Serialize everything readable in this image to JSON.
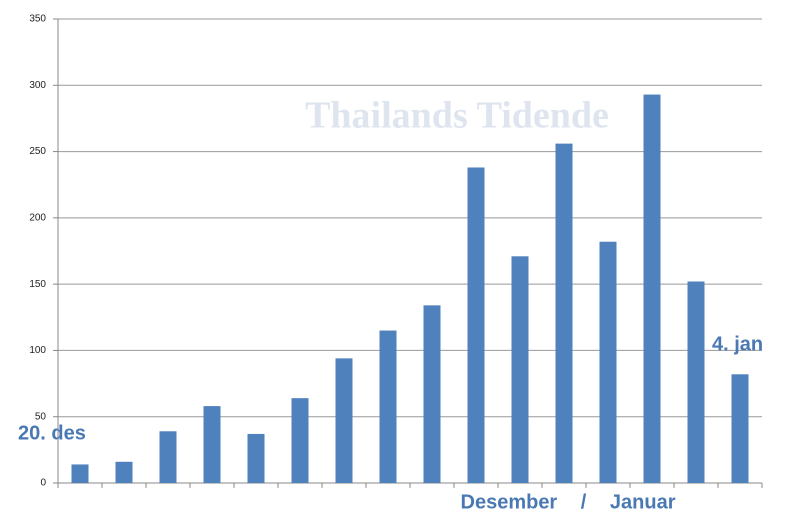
{
  "chart_data": {
    "type": "bar",
    "watermark": "Thailands Tidende",
    "categories": [
      null,
      null,
      null,
      null,
      null,
      null,
      null,
      null,
      null,
      null,
      null,
      null,
      null,
      null,
      null,
      null
    ],
    "values": [
      14,
      16,
      39,
      58,
      37,
      64,
      94,
      115,
      134,
      238,
      171,
      256,
      182,
      293,
      152,
      82
    ],
    "color": "#4f81bd",
    "ylim": [
      0,
      350
    ],
    "yticks": [
      0,
      50,
      100,
      150,
      200,
      250,
      300,
      350
    ],
    "grid": true,
    "annotations": [
      "20. des",
      "4. jan",
      "Desember / Januar"
    ]
  }
}
